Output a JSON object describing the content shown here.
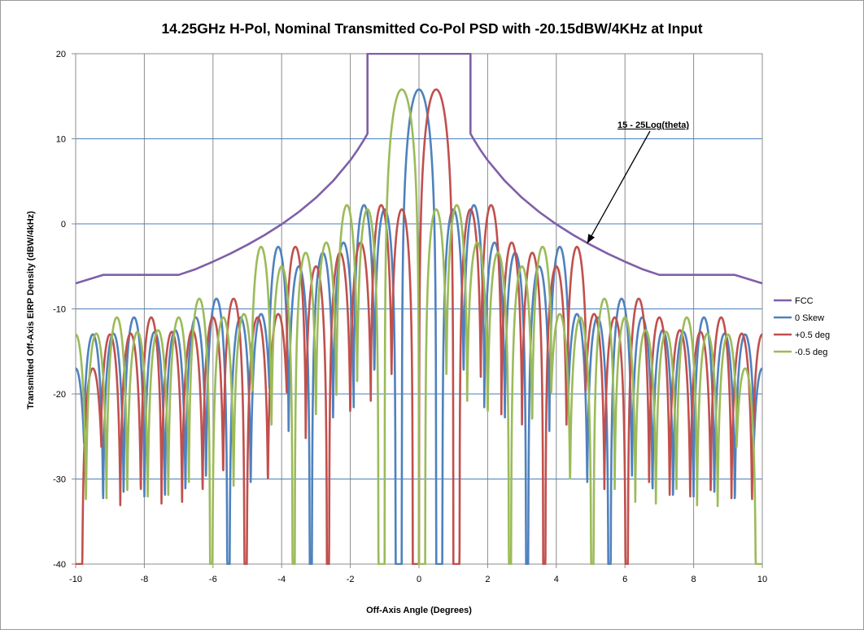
{
  "chart_data": {
    "type": "line",
    "title": "14.25GHz H-Pol, Nominal Transmitted Co-Pol PSD with -20.15dBW/4KHz at Input",
    "xlabel": "Off-Axis Angle (Degrees)",
    "ylabel": "Transmitted Off-Axis EIRP Density (dBW/4kHz)",
    "xlim": [
      -10,
      10
    ],
    "ylim": [
      -40,
      20
    ],
    "x_ticks": [
      -10,
      -8,
      -6,
      -4,
      -2,
      0,
      2,
      4,
      6,
      8,
      10
    ],
    "y_ticks": [
      -40,
      -30,
      -20,
      -10,
      0,
      10,
      20
    ],
    "grid": true,
    "legend_position": "right",
    "annotation": {
      "text": "15 - 25Log(theta)",
      "points_to": [
        4.9,
        -2.3
      ]
    },
    "series": [
      {
        "name": "FCC",
        "color": "#7f5fa8",
        "x": [
          -10,
          -9.2,
          -9.2,
          -7,
          -7,
          -6.5,
          -6,
          -5.5,
          -5,
          -4.5,
          -4,
          -3.5,
          -3,
          -2.5,
          -2,
          -1.8,
          -1.6,
          -1.5,
          -1.5,
          1.5,
          1.5,
          1.6,
          1.8,
          2,
          2.5,
          3,
          3.5,
          4,
          4.5,
          5,
          5.5,
          6,
          6.5,
          7,
          7,
          9.2,
          9.2,
          10
        ],
        "y": [
          -7,
          -6,
          -6,
          -6,
          -6,
          -5.32,
          -4.45,
          -3.51,
          -2.47,
          -1.33,
          -0.05,
          1.4,
          3.07,
          5.05,
          7.47,
          8.62,
          9.9,
          10.6,
          20,
          20,
          10.6,
          9.9,
          8.62,
          7.47,
          5.05,
          3.07,
          1.4,
          -0.05,
          -1.33,
          -2.47,
          -3.51,
          -4.45,
          -5.32,
          -6,
          -6,
          -6,
          -6,
          -7
        ]
      },
      {
        "name": "0 Skew",
        "color": "#4f81bd",
        "offset": 0,
        "main_peak": 15.8,
        "lobes": [
          {
            "x": 1.0,
            "y": 1.7
          },
          {
            "x": 1.6,
            "y": 2.2
          },
          {
            "x": 2.2,
            "y": -2.2
          },
          {
            "x": 2.8,
            "y": -3.4
          },
          {
            "x": 3.5,
            "y": -5.0
          },
          {
            "x": 4.1,
            "y": -2.7
          },
          {
            "x": 4.6,
            "y": -10.6
          },
          {
            "x": 5.2,
            "y": -11.0
          },
          {
            "x": 5.9,
            "y": -8.8
          },
          {
            "x": 6.5,
            "y": -11.0
          },
          {
            "x": 7.1,
            "y": -12.5
          },
          {
            "x": 7.7,
            "y": -12.7
          },
          {
            "x": 8.3,
            "y": -11.0
          },
          {
            "x": 8.9,
            "y": -12.9
          },
          {
            "x": 9.5,
            "y": -13.0
          },
          {
            "x": 10.0,
            "y": -17.0
          }
        ]
      },
      {
        "name": "+0.5 deg",
        "color": "#c0504d",
        "offset": 0.5,
        "main_peak": 15.8,
        "lobes": [
          {
            "x": 1.0,
            "y": 1.7
          },
          {
            "x": 1.6,
            "y": 2.2
          },
          {
            "x": 2.2,
            "y": -2.2
          },
          {
            "x": 2.8,
            "y": -3.4
          },
          {
            "x": 3.5,
            "y": -5.0
          },
          {
            "x": 4.1,
            "y": -2.7
          },
          {
            "x": 4.6,
            "y": -10.6
          },
          {
            "x": 5.2,
            "y": -11.0
          },
          {
            "x": 5.9,
            "y": -8.8
          },
          {
            "x": 6.5,
            "y": -11.0
          },
          {
            "x": 7.1,
            "y": -12.5
          },
          {
            "x": 7.7,
            "y": -12.7
          },
          {
            "x": 8.3,
            "y": -11.0
          },
          {
            "x": 8.9,
            "y": -12.9
          },
          {
            "x": 9.5,
            "y": -13.0
          },
          {
            "x": 10.0,
            "y": -17.0
          }
        ]
      },
      {
        "name": "-0.5 deg",
        "color": "#9bbb59",
        "offset": -0.5,
        "main_peak": 15.8,
        "lobes": [
          {
            "x": 1.0,
            "y": 1.7
          },
          {
            "x": 1.6,
            "y": 2.2
          },
          {
            "x": 2.2,
            "y": -2.2
          },
          {
            "x": 2.8,
            "y": -3.4
          },
          {
            "x": 3.5,
            "y": -5.0
          },
          {
            "x": 4.1,
            "y": -2.7
          },
          {
            "x": 4.6,
            "y": -10.6
          },
          {
            "x": 5.2,
            "y": -11.0
          },
          {
            "x": 5.9,
            "y": -8.8
          },
          {
            "x": 6.5,
            "y": -11.0
          },
          {
            "x": 7.1,
            "y": -12.5
          },
          {
            "x": 7.7,
            "y": -12.7
          },
          {
            "x": 8.3,
            "y": -11.0
          },
          {
            "x": 8.9,
            "y": -12.9
          },
          {
            "x": 9.5,
            "y": -13.0
          },
          {
            "x": 10.0,
            "y": -17.0
          }
        ]
      }
    ]
  }
}
